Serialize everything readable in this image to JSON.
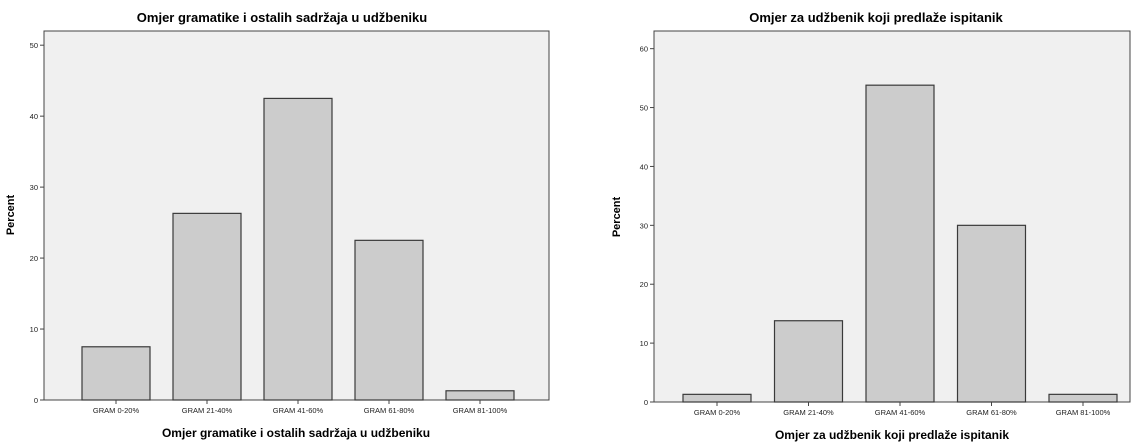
{
  "chart_data": [
    {
      "type": "bar",
      "title": "Omjer gramatike i ostalih sadržaja u udžbeniku",
      "xlabel": "Omjer gramatike i ostalih sadržaja u udžbeniku",
      "ylabel": "Percent",
      "categories": [
        "GRAM 0-20%",
        "GRAM 21-40%",
        "GRAM 41-60%",
        "GRAM 61-80%",
        "GRAM 81-100%"
      ],
      "values": [
        7.5,
        26.3,
        42.5,
        22.5,
        1.3
      ],
      "ylim": [
        0,
        52
      ],
      "yticks": [
        0,
        10,
        20,
        30,
        40,
        50
      ],
      "colors": {
        "bar": "#cccccc",
        "bar_stroke": "#3a3a3a",
        "plot_bg": "#f0f0f0"
      }
    },
    {
      "type": "bar",
      "title": "Omjer za udžbenik koji predlaže ispitanik",
      "xlabel": "Omjer za udžbenik koji predlaže ispitanik",
      "ylabel": "Percent",
      "categories": [
        "GRAM 0-20%",
        "GRAM 21-40%",
        "GRAM 41-60%",
        "GRAM 61-80%",
        "GRAM 81-100%"
      ],
      "values": [
        1.3,
        13.8,
        53.8,
        30.0,
        1.3
      ],
      "ylim": [
        0,
        63
      ],
      "yticks": [
        0,
        10,
        20,
        30,
        40,
        50,
        60
      ],
      "colors": {
        "bar": "#cccccc",
        "bar_stroke": "#3a3a3a",
        "plot_bg": "#f0f0f0"
      }
    }
  ]
}
